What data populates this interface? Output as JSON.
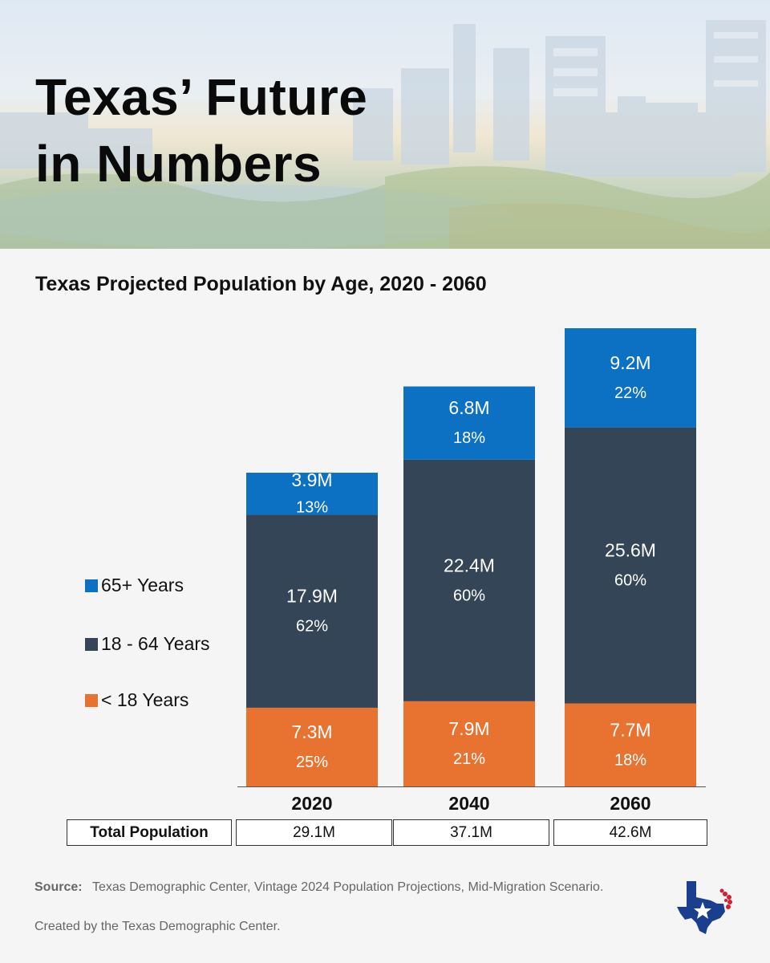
{
  "header": {
    "title_lines": [
      "Texas’ Future",
      "in Numbers"
    ]
  },
  "chart_data": {
    "type": "bar",
    "stacked": true,
    "title": "Texas Projected Population by Age, 2020 - 2060",
    "categories": [
      "2020",
      "2040",
      "2060"
    ],
    "series": [
      {
        "name": "< 18 Years",
        "color": "#e87331",
        "values": [
          7.3,
          7.9,
          7.7
        ],
        "labels": [
          "7.3M",
          "7.9M",
          "7.7M"
        ],
        "percents": [
          "25%",
          "21%",
          "18%"
        ]
      },
      {
        "name": "18 - 64 Years",
        "color": "#344558",
        "values": [
          17.9,
          22.4,
          25.6
        ],
        "labels": [
          "17.9M",
          "22.4M",
          "25.6M"
        ],
        "percents": [
          "62%",
          "60%",
          "60%"
        ]
      },
      {
        "name": "65+ Years",
        "color": "#0c71c2",
        "values": [
          3.9,
          6.8,
          9.2
        ],
        "labels": [
          "3.9M",
          "6.8M",
          "9.2M"
        ],
        "percents": [
          "13%",
          "18%",
          "22%"
        ]
      }
    ],
    "legend_position": "left",
    "legend_order": [
      "65+ Years",
      "18 - 64 Years",
      "< 18 Years"
    ],
    "grid": false
  },
  "totals": {
    "label": "Total Population",
    "values": [
      "29.1M",
      "37.1M",
      "42.6M"
    ]
  },
  "footer": {
    "source_label": "Source:",
    "source_text": "Texas Demographic Center, Vintage 2024 Population Projections, Mid-Migration Scenario.",
    "credit": "Created by the Texas Demographic Center."
  },
  "colors": {
    "under18": "#e87331",
    "working": "#344558",
    "senior": "#0c71c2",
    "background": "#f5f5f5",
    "logo_blue": "#1b3f8f",
    "logo_red": "#d3202f"
  },
  "icons": {
    "logo": "texas-star-logo-icon"
  }
}
